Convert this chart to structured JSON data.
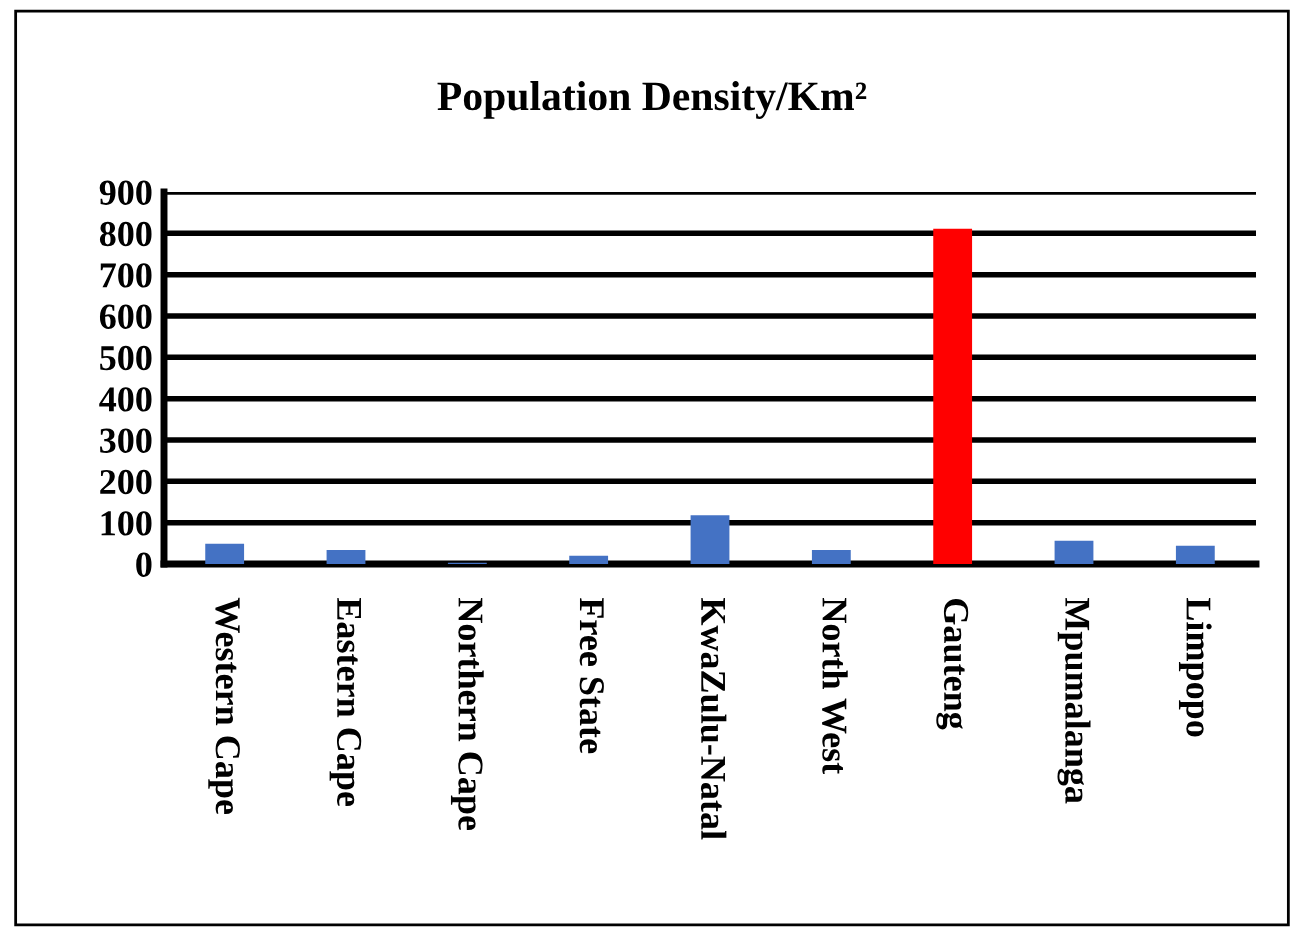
{
  "chart_data": {
    "type": "bar",
    "title": "Population Density/Km²",
    "categories": [
      "Western Cape",
      "Eastern Cape",
      "Northern Cape",
      "Free State",
      "KwaZulu-Natal",
      "North West",
      "Gauteng",
      "Mpumalanga",
      "Limpopo"
    ],
    "values": [
      49,
      34,
      3,
      20,
      118,
      34,
      811,
      56,
      44
    ],
    "colors": [
      "#4472c4",
      "#4472c4",
      "#4472c4",
      "#4472c4",
      "#4472c4",
      "#4472c4",
      "#ff0000",
      "#4472c4",
      "#4472c4"
    ],
    "ylim": [
      0,
      900
    ],
    "yticks": [
      0,
      100,
      200,
      300,
      400,
      500,
      600,
      700,
      800,
      900
    ],
    "grid": "y",
    "legend": false
  }
}
